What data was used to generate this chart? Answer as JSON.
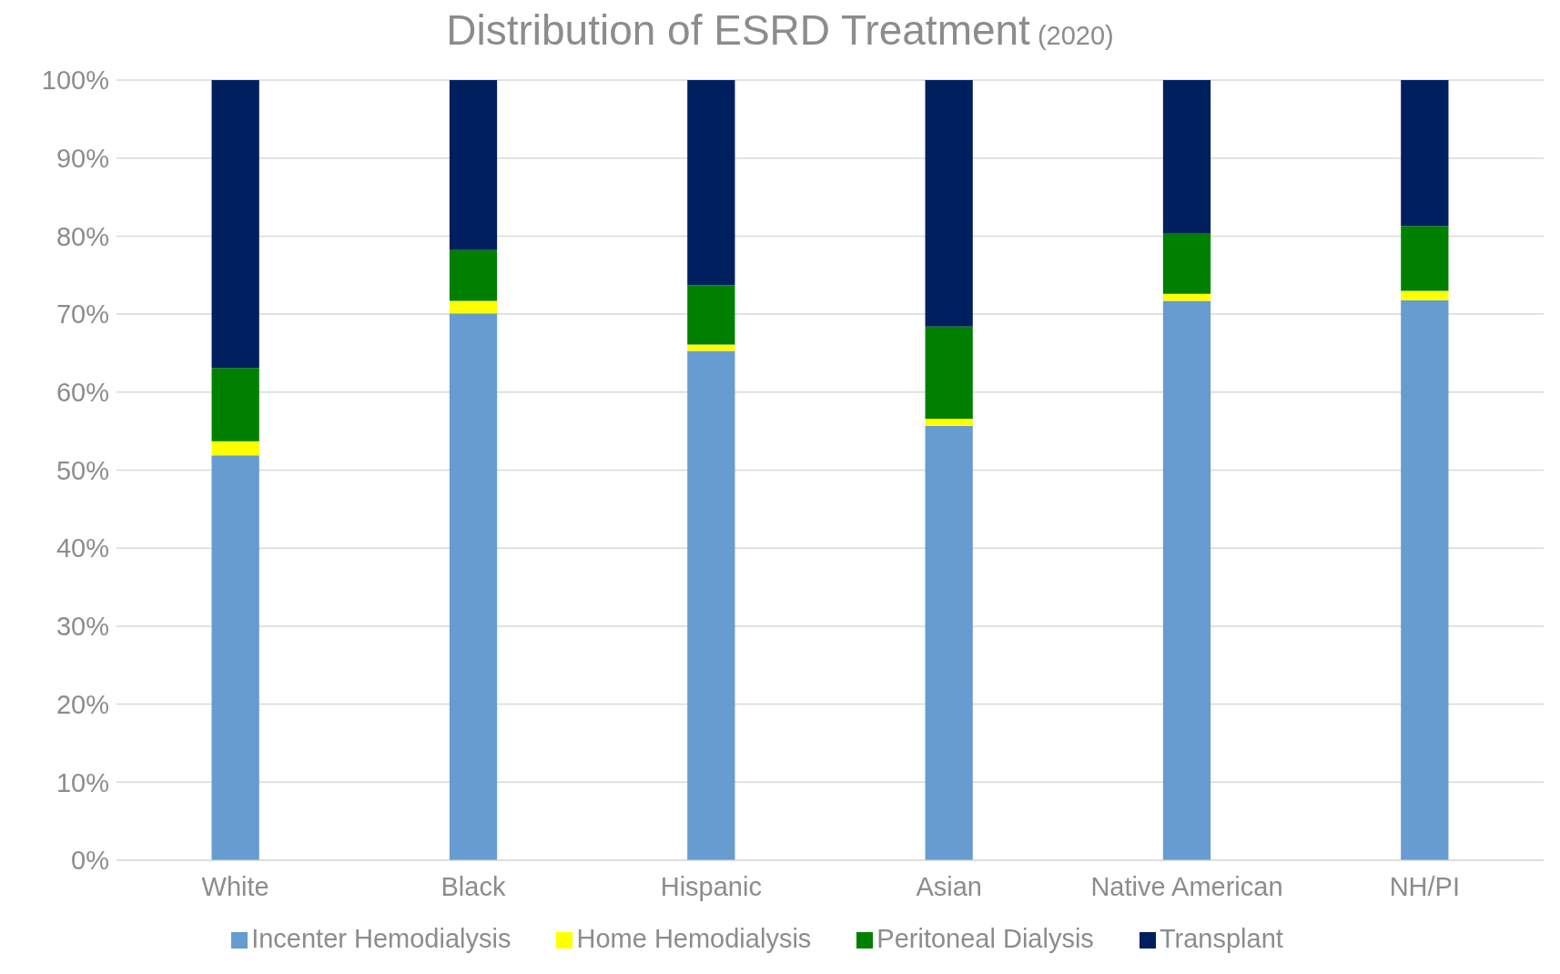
{
  "chart_data": {
    "type": "bar",
    "title": "Distribution of ESRD Treatment",
    "subtitle": "(2020)",
    "stacked": true,
    "categories": [
      "White",
      "Black",
      "Hispanic",
      "Asian",
      "Native American",
      "NH/PI"
    ],
    "series": [
      {
        "name": "Incenter Hemodialysis",
        "color": "#669cd0",
        "values": [
          51.9,
          70.1,
          65.3,
          55.7,
          71.7,
          71.8
        ]
      },
      {
        "name": "Home Hemodialysis",
        "color": "#ffff00",
        "values": [
          1.8,
          1.6,
          0.8,
          0.9,
          0.9,
          1.2
        ]
      },
      {
        "name": "Peritoneal Dialysis",
        "color": "#008000",
        "values": [
          9.4,
          6.5,
          7.6,
          11.8,
          7.7,
          8.3
        ]
      },
      {
        "name": "Transplant",
        "color": "#001f5f",
        "values": [
          36.9,
          21.8,
          26.3,
          31.6,
          19.7,
          18.7
        ]
      }
    ],
    "ylim": [
      0,
      100
    ],
    "yticks": [
      {
        "value": 0,
        "label": "0%"
      },
      {
        "value": 10,
        "label": "10%"
      },
      {
        "value": 20,
        "label": "20%"
      },
      {
        "value": 30,
        "label": "30%"
      },
      {
        "value": 40,
        "label": "40%"
      },
      {
        "value": 50,
        "label": "50%"
      },
      {
        "value": 60,
        "label": "60%"
      },
      {
        "value": 70,
        "label": "70%"
      },
      {
        "value": 80,
        "label": "80%"
      },
      {
        "value": 90,
        "label": "90%"
      },
      {
        "value": 100,
        "label": "100%"
      }
    ],
    "grid": "y",
    "legend": "bottom"
  }
}
